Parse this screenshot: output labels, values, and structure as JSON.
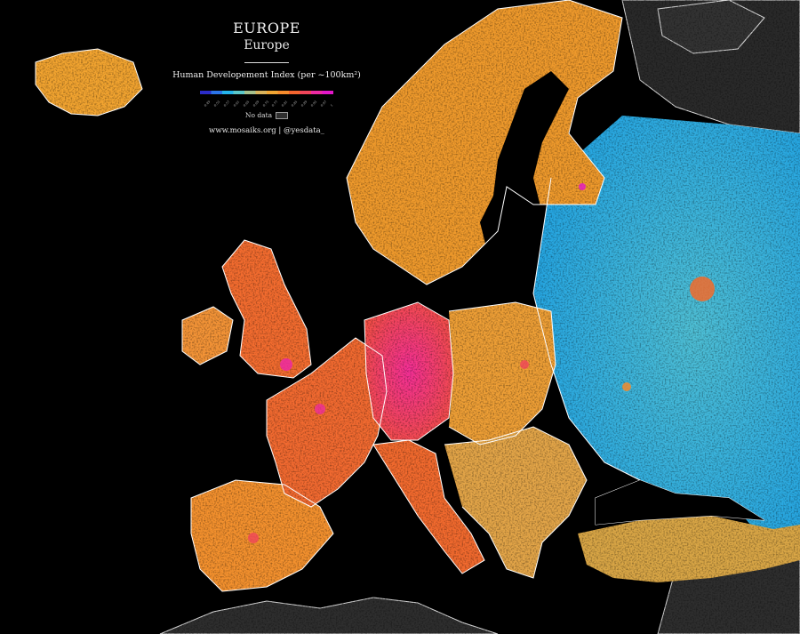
{
  "map": {
    "title": "EUROPE",
    "subtitle": "Europe",
    "index_label": "Human Developement Index (per ~100km²)",
    "scale_ticks": [
      "0.49",
      "0.53",
      "0.57",
      "0.61",
      "0.65",
      "0.69",
      "0.73",
      "0.77",
      "0.81",
      "0.85",
      "0.89",
      "0.93",
      "0.97",
      "1"
    ],
    "no_data_label": "No data",
    "credit": "www.mosaiks.org | @yesdata_",
    "colors": {
      "background": "#000000",
      "no_data": "#2f2f2f",
      "borders": "#ffffff",
      "scale": [
        "#2b2cc8",
        "#2b74e8",
        "#24b4ec",
        "#5ac7c9",
        "#a5c08c",
        "#d8b25b",
        "#f0a533",
        "#f68b2c",
        "#f4652f",
        "#f0455a",
        "#ec2aa2",
        "#e317c9"
      ]
    }
  }
}
